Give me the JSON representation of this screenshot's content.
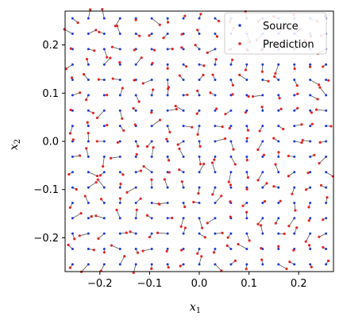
{
  "chart_data": {
    "type": "scatter",
    "title": "",
    "xlabel": "x",
    "xlabel_sub": "1",
    "ylabel": "x",
    "ylabel_sub": "2",
    "xlim": [
      -0.27,
      0.27
    ],
    "ylim": [
      -0.27,
      0.27
    ],
    "xticks": [
      -0.2,
      -0.1,
      0.0,
      0.1,
      0.2
    ],
    "yticks": [
      -0.2,
      -0.1,
      0.0,
      0.1,
      0.2
    ],
    "xtick_labels": [
      "−0.2",
      "−0.1",
      "0.0",
      "0.1",
      "0.2"
    ],
    "ytick_labels": [
      "−0.2",
      "−0.1",
      "0.0",
      "0.1",
      "0.2"
    ],
    "grid": false,
    "legend_position": "top-right",
    "series": [
      {
        "name": "Source",
        "color": "#1f3bd6",
        "marker": "dot"
      },
      {
        "name": "Prediction",
        "color": "#e32626",
        "marker": "dot"
      }
    ],
    "grid_points": {
      "x_start": -0.255,
      "x_end": 0.255,
      "y_start": -0.255,
      "y_end": 0.255,
      "count": 17
    },
    "link_color": "#555555"
  }
}
